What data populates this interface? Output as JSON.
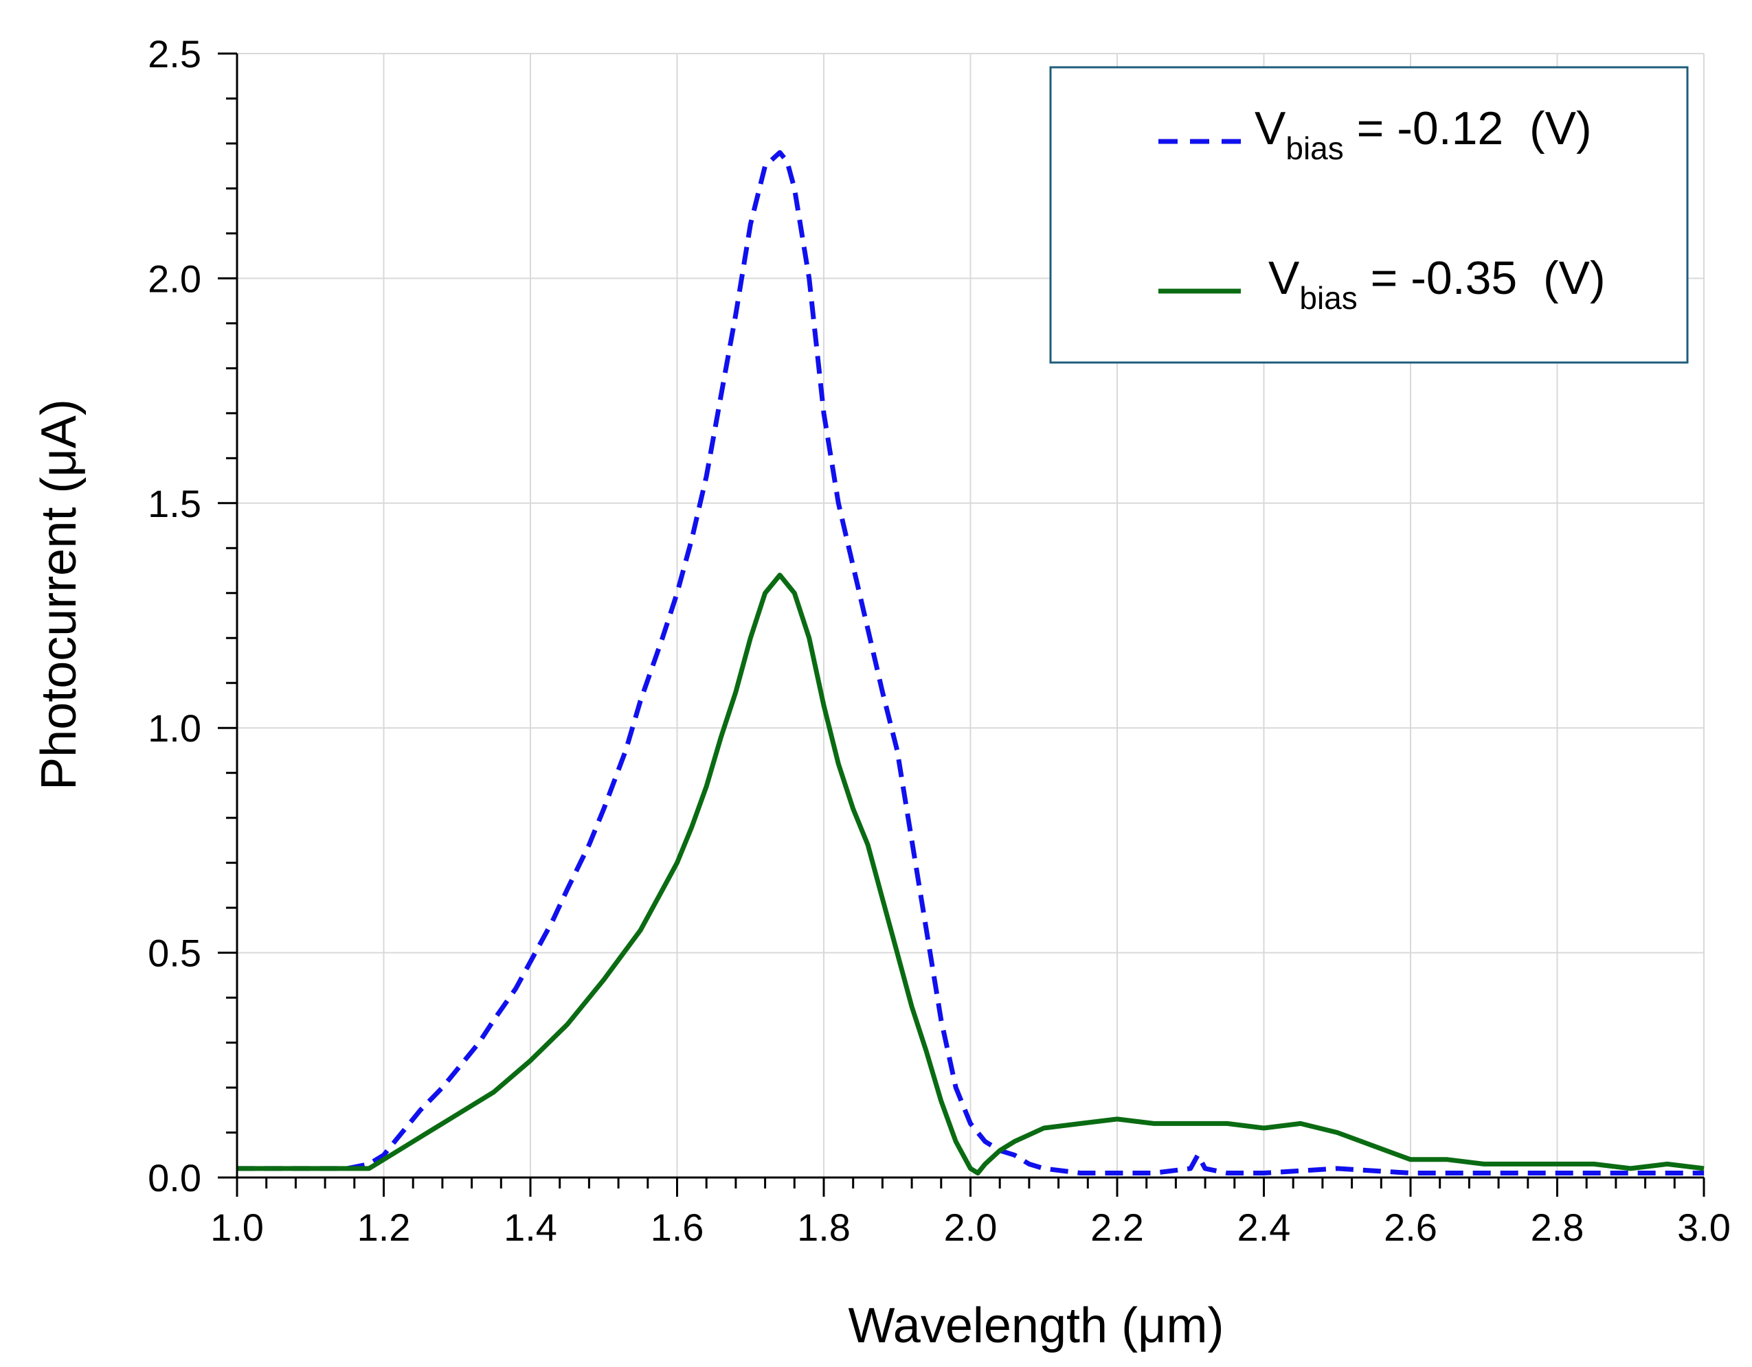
{
  "chart_data": {
    "type": "line",
    "title": "",
    "xlabel": "Wavelength (μm)",
    "ylabel": "Photocurrent (μA)",
    "xlim": [
      1.0,
      3.0
    ],
    "ylim": [
      0.0,
      2.5
    ],
    "xticks": [
      "1.0",
      "1.2",
      "1.4",
      "1.6",
      "1.8",
      "2.0",
      "2.2",
      "2.4",
      "2.6",
      "2.8",
      "3.0"
    ],
    "yticks": [
      "0.0",
      "0.5",
      "1.0",
      "1.5",
      "2.0",
      "2.5"
    ],
    "grid": true,
    "legend_position": "top-right",
    "series": [
      {
        "name": "V_bias = -0.12 (V)",
        "legend": {
          "prefix": "V",
          "sub": "bias",
          "suffix": " = -0.12  (V)"
        },
        "style": "dashed",
        "color": "#1010ee",
        "x": [
          1.0,
          1.05,
          1.1,
          1.15,
          1.18,
          1.2,
          1.22,
          1.25,
          1.28,
          1.3,
          1.33,
          1.35,
          1.38,
          1.4,
          1.43,
          1.45,
          1.48,
          1.5,
          1.53,
          1.55,
          1.58,
          1.6,
          1.62,
          1.64,
          1.66,
          1.68,
          1.7,
          1.72,
          1.74,
          1.75,
          1.76,
          1.78,
          1.8,
          1.82,
          1.84,
          1.86,
          1.88,
          1.9,
          1.92,
          1.94,
          1.96,
          1.98,
          2.0,
          2.02,
          2.04,
          2.06,
          2.08,
          2.1,
          2.15,
          2.2,
          2.25,
          2.3,
          2.31,
          2.32,
          2.35,
          2.4,
          2.5,
          2.6,
          2.7,
          2.8,
          2.9,
          3.0
        ],
        "y": [
          0.02,
          0.02,
          0.02,
          0.02,
          0.03,
          0.05,
          0.09,
          0.15,
          0.2,
          0.24,
          0.3,
          0.35,
          0.42,
          0.48,
          0.57,
          0.64,
          0.74,
          0.82,
          0.95,
          1.06,
          1.2,
          1.3,
          1.42,
          1.56,
          1.74,
          1.92,
          2.12,
          2.25,
          2.28,
          2.26,
          2.2,
          2.0,
          1.7,
          1.5,
          1.36,
          1.22,
          1.08,
          0.95,
          0.75,
          0.55,
          0.35,
          0.2,
          0.12,
          0.08,
          0.06,
          0.05,
          0.03,
          0.02,
          0.01,
          0.01,
          0.01,
          0.02,
          0.05,
          0.02,
          0.01,
          0.01,
          0.02,
          0.01,
          0.01,
          0.01,
          0.01,
          0.01
        ]
      },
      {
        "name": "V_bias = -0.35 (V)",
        "legend": {
          "prefix": "V",
          "sub": "bias",
          "suffix": " = -0.35  (V)"
        },
        "style": "solid",
        "color": "#0a6b12",
        "x": [
          1.0,
          1.05,
          1.1,
          1.15,
          1.18,
          1.2,
          1.23,
          1.26,
          1.3,
          1.35,
          1.4,
          1.45,
          1.5,
          1.55,
          1.58,
          1.6,
          1.62,
          1.64,
          1.66,
          1.68,
          1.7,
          1.72,
          1.74,
          1.76,
          1.78,
          1.8,
          1.82,
          1.84,
          1.86,
          1.88,
          1.9,
          1.92,
          1.94,
          1.96,
          1.98,
          2.0,
          2.01,
          2.02,
          2.04,
          2.06,
          2.1,
          2.15,
          2.2,
          2.25,
          2.3,
          2.35,
          2.4,
          2.45,
          2.5,
          2.55,
          2.6,
          2.65,
          2.7,
          2.75,
          2.8,
          2.85,
          2.9,
          2.95,
          3.0
        ],
        "y": [
          0.02,
          0.02,
          0.02,
          0.02,
          0.02,
          0.04,
          0.07,
          0.1,
          0.14,
          0.19,
          0.26,
          0.34,
          0.44,
          0.55,
          0.64,
          0.7,
          0.78,
          0.87,
          0.98,
          1.08,
          1.2,
          1.3,
          1.34,
          1.3,
          1.2,
          1.05,
          0.92,
          0.82,
          0.74,
          0.62,
          0.5,
          0.38,
          0.28,
          0.17,
          0.08,
          0.02,
          0.01,
          0.03,
          0.06,
          0.08,
          0.11,
          0.12,
          0.13,
          0.12,
          0.12,
          0.12,
          0.11,
          0.12,
          0.1,
          0.07,
          0.04,
          0.04,
          0.03,
          0.03,
          0.03,
          0.03,
          0.02,
          0.03,
          0.02
        ]
      }
    ]
  }
}
